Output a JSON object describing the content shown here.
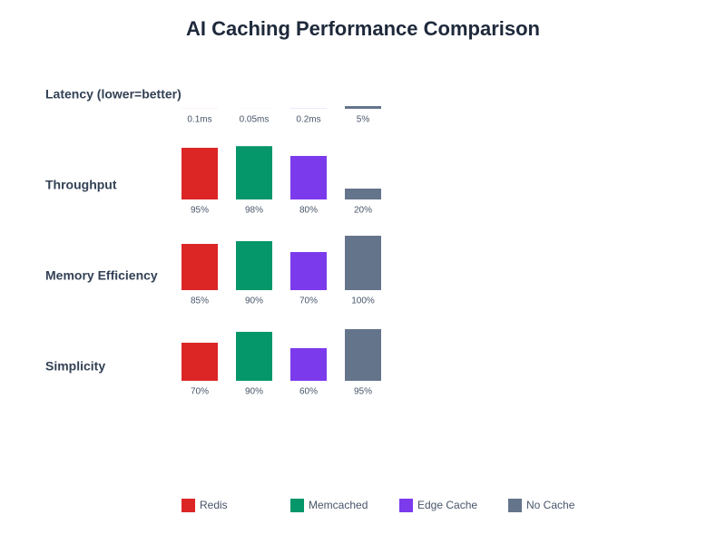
{
  "chart_data": {
    "type": "bar",
    "title": "AI Caching Performance Comparison",
    "categories": [
      "Latency (lower=better)",
      "Throughput",
      "Memory Efficiency",
      "Simplicity"
    ],
    "ylim": [
      0,
      100
    ],
    "series": [
      {
        "name": "Redis",
        "color": "#dc2626",
        "values": [
          0.1,
          95,
          85,
          70
        ],
        "value_labels": [
          "0.1ms",
          "95%",
          "85%",
          "70%"
        ]
      },
      {
        "name": "Memcached",
        "color": "#059669",
        "values": [
          0.05,
          98,
          90,
          90
        ],
        "value_labels": [
          "0.05ms",
          "98%",
          "90%",
          "90%"
        ]
      },
      {
        "name": "Edge Cache",
        "color": "#7c3aed",
        "values": [
          0.2,
          80,
          70,
          60
        ],
        "value_labels": [
          "0.2ms",
          "80%",
          "70%",
          "60%"
        ]
      },
      {
        "name": "No Cache",
        "color": "#64748b",
        "values": [
          5,
          20,
          100,
          95
        ],
        "value_labels": [
          "5%",
          "20%",
          "100%",
          "95%"
        ]
      }
    ]
  }
}
